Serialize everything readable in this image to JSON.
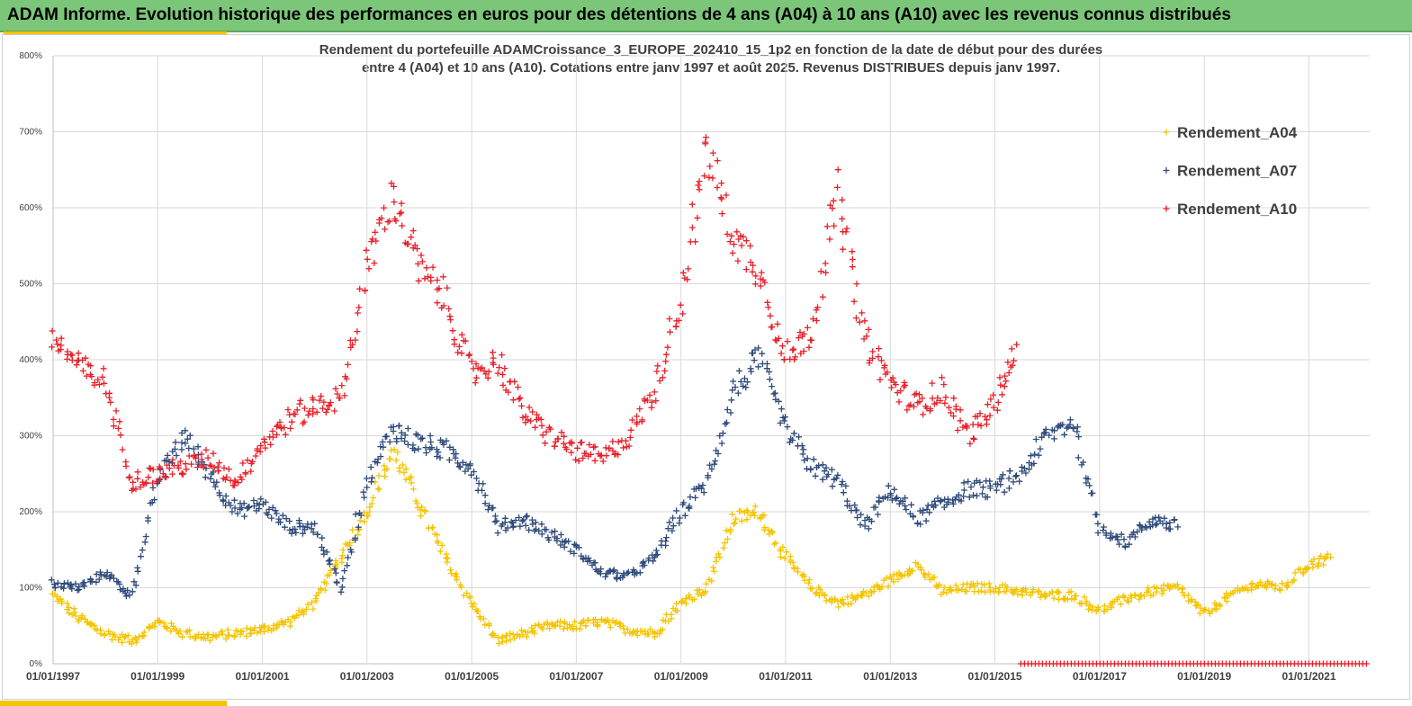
{
  "banner": {
    "title": "ADAM Informe. Evolution historique des performances en euros pour des détentions de 4 ans (A04) à 10 ans (A10) avec les revenus connus distribués"
  },
  "colors": {
    "banner": "#7cc67a",
    "accent": "#f5c400",
    "A04": "#f5c400",
    "A07": "#2e4a7a",
    "A10": "#e8202a"
  },
  "chart_data": {
    "type": "scatter",
    "title_lines": [
      "Rendement du portefeuille ADAMCroissance_3_EUROPE_202410_15_1p2  en fonction de la date de début pour des durées",
      "entre 4 (A04) et 10 ans (A10). Cotations entre janv 1997 et août 2025. Revenus DISTRIBUES depuis janv 1997."
    ],
    "marker": "plus",
    "x_axis": {
      "type": "date",
      "min": "1997-01-01",
      "max": "2022-03-01",
      "tick_labels": [
        "01/01/1997",
        "01/01/1999",
        "01/01/2001",
        "01/01/2003",
        "01/01/2005",
        "01/01/2007",
        "01/01/2009",
        "01/01/2011",
        "01/01/2013",
        "01/01/2015",
        "01/01/2017",
        "01/01/2019",
        "01/01/2021"
      ]
    },
    "y_axis": {
      "min": 0,
      "max": 800,
      "unit": "%",
      "tick_labels": [
        "0%",
        "100%",
        "200%",
        "300%",
        "400%",
        "500%",
        "600%",
        "700%",
        "800%"
      ]
    },
    "grid": true,
    "legend_position": "top-right",
    "series": [
      {
        "name": "Rendement_A04",
        "color": "#f5c400",
        "x": [
          "1997-01",
          "1997-07",
          "1998-01",
          "1998-07",
          "1999-01",
          "1999-07",
          "2000-01",
          "2000-07",
          "2001-01",
          "2001-07",
          "2002-01",
          "2002-07",
          "2003-01",
          "2003-07",
          "2004-01",
          "2004-07",
          "2005-01",
          "2005-07",
          "2006-01",
          "2006-07",
          "2007-01",
          "2007-07",
          "2008-01",
          "2008-07",
          "2009-01",
          "2009-07",
          "2010-01",
          "2010-07",
          "2011-01",
          "2011-07",
          "2012-01",
          "2012-07",
          "2013-01",
          "2013-07",
          "2014-01",
          "2014-07",
          "2015-01",
          "2015-07",
          "2016-01",
          "2016-07",
          "2017-01",
          "2017-07",
          "2018-01",
          "2018-07",
          "2019-01",
          "2019-07",
          "2020-01",
          "2020-07",
          "2021-01",
          "2021-06"
        ],
        "y": [
          90,
          60,
          40,
          30,
          55,
          40,
          35,
          40,
          45,
          55,
          80,
          140,
          200,
          280,
          210,
          140,
          80,
          30,
          40,
          50,
          50,
          55,
          45,
          40,
          80,
          100,
          190,
          200,
          140,
          100,
          80,
          90,
          110,
          130,
          95,
          100,
          100,
          95,
          90,
          90,
          70,
          85,
          95,
          100,
          65,
          90,
          105,
          100,
          130,
          140
        ]
      },
      {
        "name": "Rendement_A07",
        "color": "#2e4a7a",
        "x": [
          "1997-01",
          "1997-07",
          "1998-01",
          "1998-07",
          "1999-01",
          "1999-07",
          "2000-01",
          "2000-07",
          "2001-01",
          "2001-07",
          "2002-01",
          "2002-07",
          "2003-01",
          "2003-07",
          "2004-01",
          "2004-07",
          "2005-01",
          "2005-07",
          "2006-01",
          "2006-07",
          "2007-01",
          "2007-07",
          "2008-01",
          "2008-07",
          "2009-01",
          "2009-07",
          "2010-01",
          "2010-07",
          "2011-01",
          "2011-07",
          "2012-01",
          "2012-07",
          "2013-01",
          "2013-07",
          "2014-01",
          "2014-07",
          "2015-01",
          "2015-07",
          "2016-01",
          "2016-07",
          "2017-01",
          "2017-07",
          "2018-01",
          "2018-07"
        ],
        "y": [
          105,
          100,
          120,
          90,
          240,
          300,
          250,
          200,
          210,
          180,
          180,
          100,
          240,
          310,
          290,
          280,
          260,
          180,
          190,
          170,
          150,
          120,
          115,
          140,
          200,
          240,
          360,
          400,
          310,
          260,
          240,
          180,
          230,
          190,
          210,
          230,
          230,
          250,
          300,
          320,
          180,
          160,
          190,
          180
        ]
      },
      {
        "name": "Rendement_A10",
        "color": "#e8202a",
        "x": [
          "1997-01",
          "1997-07",
          "1998-01",
          "1998-07",
          "1999-01",
          "1999-07",
          "2000-01",
          "2000-07",
          "2001-01",
          "2001-07",
          "2002-01",
          "2002-07",
          "2003-01",
          "2003-07",
          "2004-01",
          "2004-07",
          "2005-01",
          "2005-07",
          "2006-01",
          "2006-07",
          "2007-01",
          "2007-07",
          "2008-01",
          "2008-07",
          "2009-01",
          "2009-07",
          "2010-01",
          "2010-07",
          "2011-01",
          "2011-07",
          "2012-01",
          "2012-07",
          "2013-01",
          "2013-07",
          "2014-01",
          "2014-07",
          "2015-01",
          "2015-06"
        ],
        "y": [
          430,
          390,
          370,
          240,
          250,
          260,
          270,
          240,
          290,
          320,
          340,
          350,
          520,
          620,
          520,
          480,
          380,
          400,
          330,
          300,
          280,
          270,
          300,
          360,
          480,
          680,
          560,
          520,
          400,
          440,
          620,
          430,
          370,
          340,
          360,
          300,
          340,
          420
        ]
      }
    ]
  }
}
